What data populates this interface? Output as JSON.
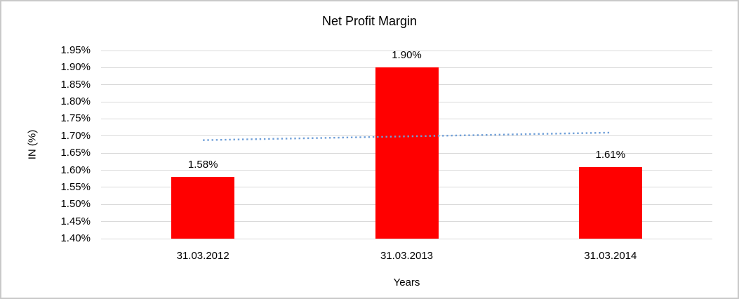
{
  "chart_data": {
    "type": "bar",
    "title": "Net Profit Margin",
    "xlabel": "Years",
    "ylabel": "IN (%)",
    "categories": [
      "31.03.2012",
      "31.03.2013",
      "31.03.2014"
    ],
    "values": [
      1.58,
      1.9,
      1.61
    ],
    "data_labels": [
      "1.58%",
      "1.90%",
      "1.61%"
    ],
    "ylim": [
      1.4,
      1.95
    ],
    "ytick_step": 0.05,
    "ytick_labels_top_to_bottom": [
      "1.95%",
      "1.90%",
      "1.85%",
      "1.80%",
      "1.75%",
      "1.70%",
      "1.65%",
      "1.60%",
      "1.55%",
      "1.50%",
      "1.45%",
      "1.40%"
    ],
    "grid": true,
    "legend": "none",
    "bar_color": "#ff0000",
    "gridline_color": "#d9d9d9",
    "text_color": "#000000",
    "frame_border_color": "#c9c9c9",
    "trendline": {
      "style": "dotted",
      "color": "#6f9fd8",
      "start_value": 1.688,
      "end_value": 1.71
    }
  }
}
